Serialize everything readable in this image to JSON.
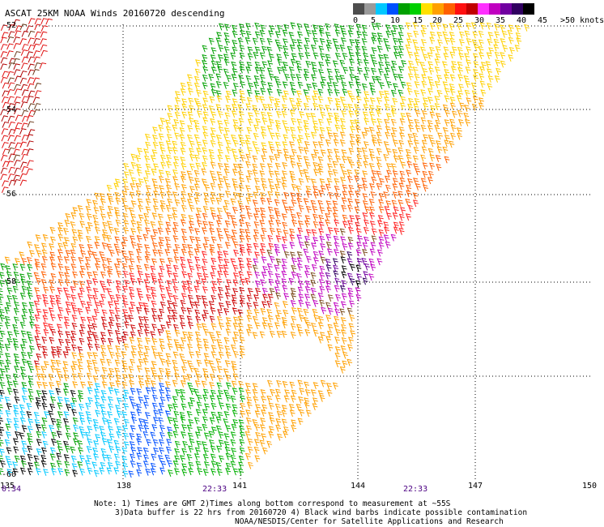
{
  "title": "ASCAT 25KM NOAA Winds 20160720 descending",
  "legend": {
    "colors": [
      "#4d4d4d",
      "#9a9a9a",
      "#00c8ff",
      "#0050ff",
      "#00a000",
      "#00d000",
      "#ffe000",
      "#ffa000",
      "#ff6000",
      "#ff1010",
      "#c00000",
      "#ff30ff",
      "#c000c0",
      "#7000a0",
      "#300060",
      "#000000"
    ],
    "labels": [
      "0",
      "5",
      "10",
      "15",
      "20",
      "25",
      "30",
      "35",
      "40",
      "45",
      ">50 knots"
    ]
  },
  "map": {
    "y_labels": [
      "-52",
      "-54",
      "-56",
      "-58",
      "-60"
    ],
    "x_labels": [
      "135",
      "138",
      "141",
      "144",
      "147",
      "150"
    ],
    "time_labels": [
      "0:34",
      "22:33",
      "22:33"
    ]
  },
  "notes": {
    "line1": "Note: 1) Times are GMT 2)Times along bottom correspond to measurement at ~55S",
    "line2": "3)Data buffer is 22 hrs from 20160720 4) Black wind barbs indicate possible contamination",
    "line3": "NOAA/NESDIS/Center for Satellite Applications and Research"
  }
}
